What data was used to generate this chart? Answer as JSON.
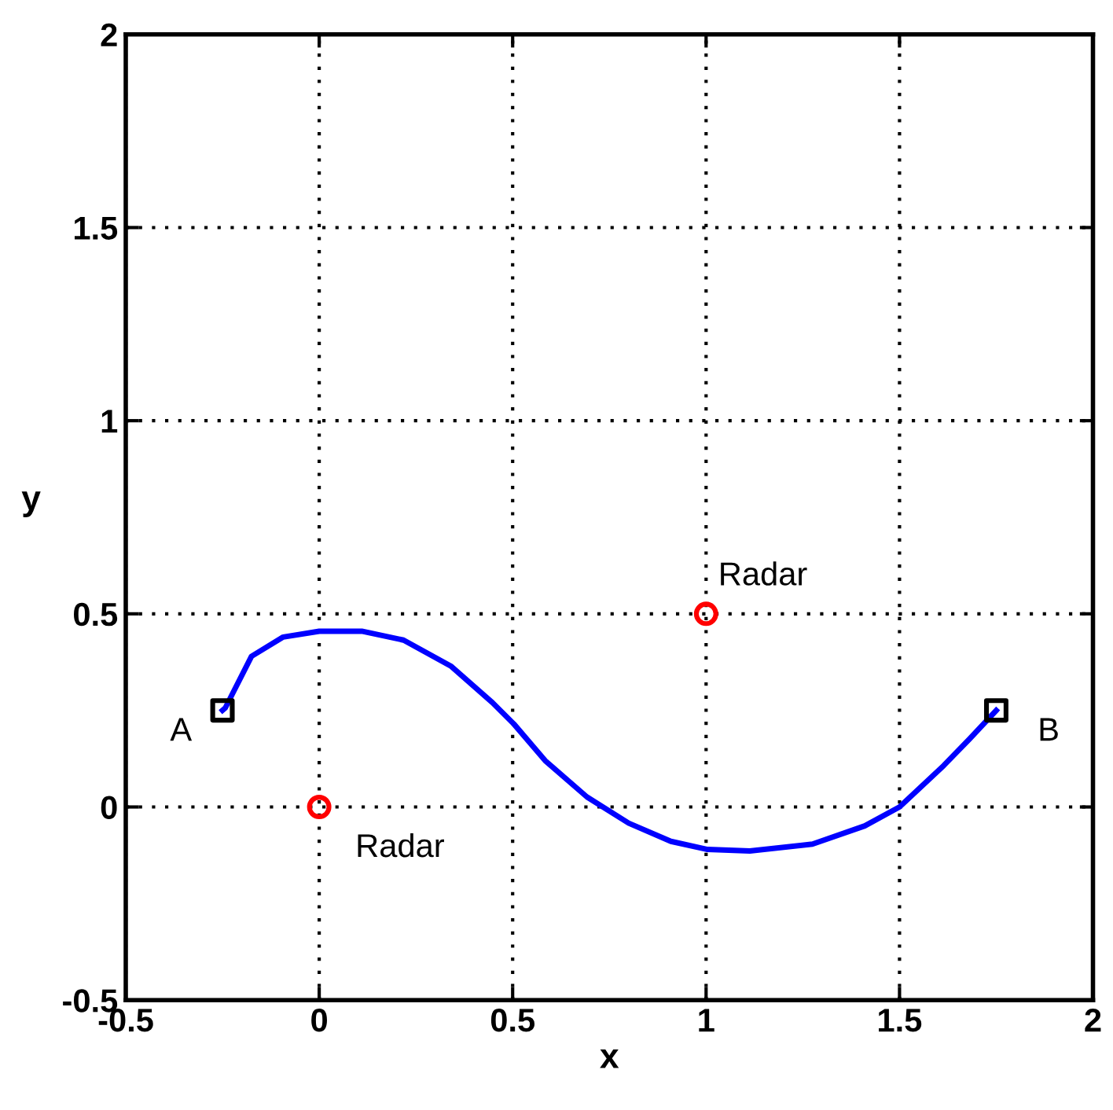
{
  "chart_data": {
    "type": "line",
    "xlabel": "x",
    "ylabel": "y",
    "xlim": [
      -0.5,
      2
    ],
    "ylim": [
      -0.5,
      2
    ],
    "xticks": [
      -0.5,
      0,
      0.5,
      1,
      1.5,
      2
    ],
    "yticks": [
      -0.5,
      0,
      0.5,
      1,
      1.5,
      2
    ],
    "grid": true,
    "series": [
      {
        "color": "#0000ff",
        "marker": "none",
        "line_style": "solid",
        "x": [
          -0.25,
          -0.243,
          -0.175,
          -0.093,
          0,
          0.11,
          0.218,
          0.34,
          0.448,
          0.503,
          0.584,
          0.692,
          0.8,
          0.909,
          1.004,
          1.113,
          1.275,
          1.41,
          1.5,
          1.614,
          1.68,
          1.75
        ],
        "values": [
          0.25,
          0.256,
          0.39,
          0.44,
          0.455,
          0.455,
          0.432,
          0.365,
          0.27,
          0.215,
          0.12,
          0.026,
          -0.042,
          -0.089,
          -0.11,
          -0.114,
          -0.096,
          -0.049,
          0,
          0.107,
          0.175,
          0.25
        ]
      },
      {
        "type": "scatter",
        "color": "#000000",
        "marker": "square",
        "x": [
          -0.25,
          1.75
        ],
        "values": [
          0.25,
          0.25
        ]
      },
      {
        "type": "scatter",
        "color": "#ff0000",
        "marker": "circle",
        "x": [
          0,
          1
        ],
        "values": [
          0,
          0.5
        ]
      }
    ],
    "annotations": [
      {
        "text": "A",
        "x": -0.25,
        "y": 0.25
      },
      {
        "text": "B",
        "x": 1.75,
        "y": 0.25
      },
      {
        "text": "Radar",
        "x": 0,
        "y": 0
      },
      {
        "text": "Radar",
        "x": 1,
        "y": 0.5
      }
    ]
  }
}
